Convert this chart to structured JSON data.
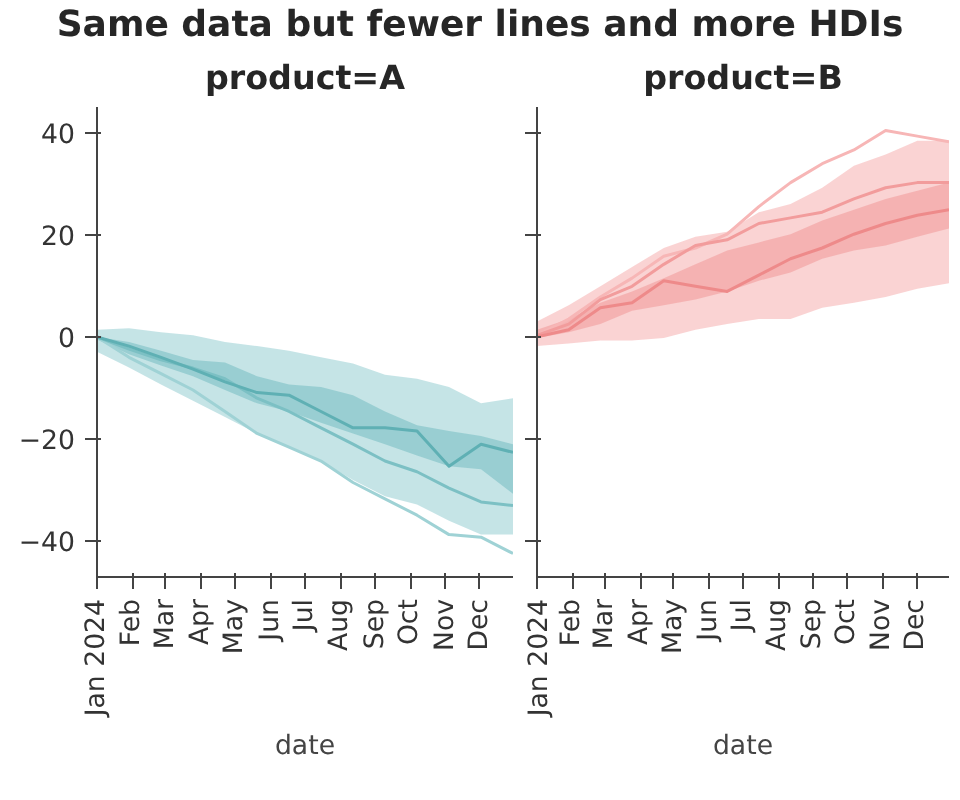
{
  "chart_data": [
    {
      "type": "line",
      "title": "Same data but fewer lines and more HDIs",
      "subtitle": "product=A",
      "xlabel": "date",
      "grid": false,
      "x": [
        "2024-01-01",
        "2024-01-29",
        "2024-02-26",
        "2024-03-25",
        "2024-04-22",
        "2024-05-20",
        "2024-06-17",
        "2024-07-15",
        "2024-08-12",
        "2024-09-09",
        "2024-10-07",
        "2024-11-04",
        "2024-12-02",
        "2024-12-30"
      ],
      "xlim": [
        "2024-01-01",
        "2024-12-30"
      ],
      "xticks": [
        {
          "value": "2024-01-01",
          "label": "Jan 2024"
        },
        {
          "value": "2024-02-01",
          "label": "Feb"
        },
        {
          "value": "2024-03-01",
          "label": "Mar"
        },
        {
          "value": "2024-04-01",
          "label": "Apr"
        },
        {
          "value": "2024-05-01",
          "label": "May"
        },
        {
          "value": "2024-06-01",
          "label": "Jun"
        },
        {
          "value": "2024-07-01",
          "label": "Jul"
        },
        {
          "value": "2024-08-01",
          "label": "Aug"
        },
        {
          "value": "2024-09-01",
          "label": "Sep"
        },
        {
          "value": "2024-10-01",
          "label": "Oct"
        },
        {
          "value": "2024-11-01",
          "label": "Nov"
        },
        {
          "value": "2024-12-01",
          "label": "Dec"
        }
      ],
      "ylim": [
        -47,
        45
      ],
      "yticks": [
        -40,
        -20,
        0,
        20,
        40
      ],
      "series": [
        {
          "color": "#9fd2d5",
          "values": [
            0,
            -4,
            -7.2,
            -10.4,
            -14.6,
            -18.9,
            -21.6,
            -24.3,
            -28.5,
            -31.7,
            -34.9,
            -38.7,
            -39.2,
            -42.4
          ],
          "lower": [
            -2.9,
            -6,
            -9.3,
            -12.5,
            -15.7,
            -18.9,
            -21.6,
            -24.3,
            -28,
            -31.2,
            -32.8,
            -36,
            -38.7,
            -38.7
          ],
          "upper": [
            1.4,
            1.7,
            0.9,
            0.3,
            -1,
            -1.8,
            -2.7,
            -4,
            -5.2,
            -7.4,
            -8.2,
            -9.8,
            -13,
            -12
          ]
        },
        {
          "color": "#7cc0c4",
          "values": [
            0,
            -2.4,
            -4.5,
            -6.1,
            -8.2,
            -12,
            -14.6,
            -17.8,
            -21,
            -24.3,
            -26.4,
            -29.6,
            -32.3,
            -33
          ],
          "lower": [
            -0.5,
            -3.4,
            -5.6,
            -7.7,
            -10.4,
            -13,
            -14.6,
            -16.8,
            -18.9,
            -21,
            -23.2,
            -25.3,
            -25.9,
            -30.7
          ],
          "upper": [
            0,
            -1,
            -2.7,
            -4.5,
            -5,
            -7.7,
            -9.3,
            -9.8,
            -11.4,
            -14.6,
            -17.3,
            -18.4,
            -19.4,
            -21
          ]
        },
        {
          "color": "#5fb0b4",
          "values": [
            0,
            -1.8,
            -4,
            -6.3,
            -8.8,
            -10.9,
            -11.4,
            -14.6,
            -17.8,
            -17.8,
            -18.4,
            -25.3,
            -21,
            -22.6
          ]
        }
      ]
    },
    {
      "type": "line",
      "subtitle": "product=B",
      "xlabel": "date",
      "grid": false,
      "tick_labels": "x",
      "x": [
        "2024-01-01",
        "2024-01-29",
        "2024-02-26",
        "2024-03-25",
        "2024-04-22",
        "2024-05-20",
        "2024-06-17",
        "2024-07-15",
        "2024-08-12",
        "2024-09-09",
        "2024-10-07",
        "2024-11-04",
        "2024-12-02",
        "2024-12-30"
      ],
      "xlim": [
        "2024-01-01",
        "2024-12-30"
      ],
      "xticks": [
        {
          "value": "2024-01-01",
          "label": "Jan 2024"
        },
        {
          "value": "2024-02-01",
          "label": "Feb"
        },
        {
          "value": "2024-03-01",
          "label": "Mar"
        },
        {
          "value": "2024-04-01",
          "label": "Apr"
        },
        {
          "value": "2024-05-01",
          "label": "May"
        },
        {
          "value": "2024-06-01",
          "label": "Jun"
        },
        {
          "value": "2024-07-01",
          "label": "Jul"
        },
        {
          "value": "2024-08-01",
          "label": "Aug"
        },
        {
          "value": "2024-09-01",
          "label": "Sep"
        },
        {
          "value": "2024-10-01",
          "label": "Oct"
        },
        {
          "value": "2024-11-01",
          "label": "Nov"
        },
        {
          "value": "2024-12-01",
          "label": "Dec"
        }
      ],
      "ylim": [
        -47,
        45
      ],
      "yticks": [
        -40,
        -20,
        0,
        20,
        40
      ],
      "series": [
        {
          "color": "#f7b6b6",
          "values": [
            0.3,
            3.5,
            7.8,
            11.5,
            15.8,
            17.4,
            20.1,
            25.5,
            30.2,
            33.9,
            36.6,
            40.4,
            39.3,
            38.2
          ],
          "lower": [
            -1.8,
            -1.3,
            -0.7,
            -0.7,
            -0.2,
            1.4,
            2.5,
            3.5,
            3.5,
            5.7,
            6.7,
            7.8,
            9.4,
            10.5
          ],
          "upper": [
            3,
            6.2,
            9.9,
            13.7,
            17.4,
            19.6,
            20.6,
            24.4,
            26,
            29.2,
            33.5,
            35.7,
            38.4,
            38.4
          ]
        },
        {
          "color": "#f29c9c",
          "values": [
            0.3,
            2.5,
            7.3,
            9.9,
            14.2,
            17.9,
            19,
            22.2,
            23.3,
            24.4,
            27,
            29.2,
            30.2,
            30.2
          ],
          "lower": [
            -0.2,
            0.9,
            2.5,
            5.1,
            6.2,
            7.3,
            8.9,
            11,
            12.6,
            15.3,
            16.9,
            17.9,
            19.6,
            21.2
          ],
          "upper": [
            1.4,
            3.5,
            6.7,
            8.9,
            11.5,
            14.2,
            16.9,
            18.5,
            20.1,
            22.8,
            24.9,
            27,
            28.6,
            30.2
          ]
        },
        {
          "color": "#ee8a8a",
          "values": [
            0,
            1.4,
            5.7,
            6.7,
            11,
            9.9,
            8.9,
            12.1,
            15.3,
            17.4,
            20.1,
            22.2,
            23.8,
            24.9
          ]
        }
      ]
    }
  ]
}
